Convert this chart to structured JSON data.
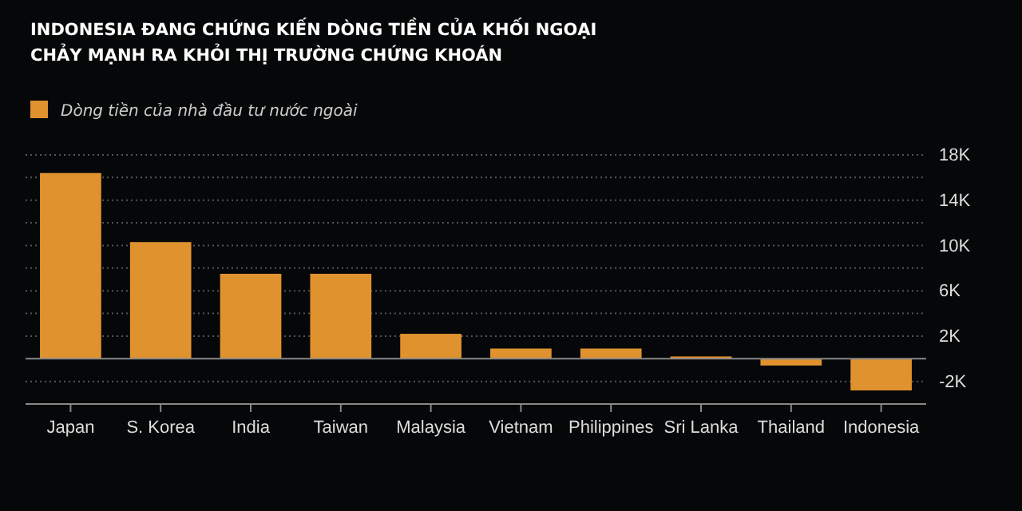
{
  "chart_data": {
    "type": "bar",
    "title": "INDONESIA ĐANG CHỨNG KIẾN DÒNG TIỀN CỦA KHỐI NGOẠI CHẢY MẠNH RA KHỎI THỊ TRƯỜNG CHỨNG KHOÁN",
    "categories": [
      "Japan",
      "S. Korea",
      "India",
      "Taiwan",
      "Malaysia",
      "Vietnam",
      "Philippines",
      "Sri Lanka",
      "Thailand",
      "Indonesia"
    ],
    "series": [
      {
        "name": "Dòng tiền của nhà đầu tư nước ngoài",
        "color": "#e0922f",
        "values": [
          16400,
          10300,
          7500,
          7500,
          2200,
          900,
          900,
          200,
          -600,
          -2800
        ]
      }
    ],
    "ylim": [
      -4000,
      18000
    ],
    "yticks": [
      {
        "value": -4000,
        "label": null
      },
      {
        "value": -2000,
        "label": "-2K"
      },
      {
        "value": 0,
        "label": null
      },
      {
        "value": 2000,
        "label": "2K"
      },
      {
        "value": 4000,
        "label": null
      },
      {
        "value": 6000,
        "label": "6K"
      },
      {
        "value": 8000,
        "label": null
      },
      {
        "value": 10000,
        "label": "10K"
      },
      {
        "value": 12000,
        "label": null
      },
      {
        "value": 14000,
        "label": "14K"
      },
      {
        "value": 16000,
        "label": null
      },
      {
        "value": 18000,
        "label": "18K"
      }
    ],
    "grid": "y",
    "legend": "top left"
  }
}
